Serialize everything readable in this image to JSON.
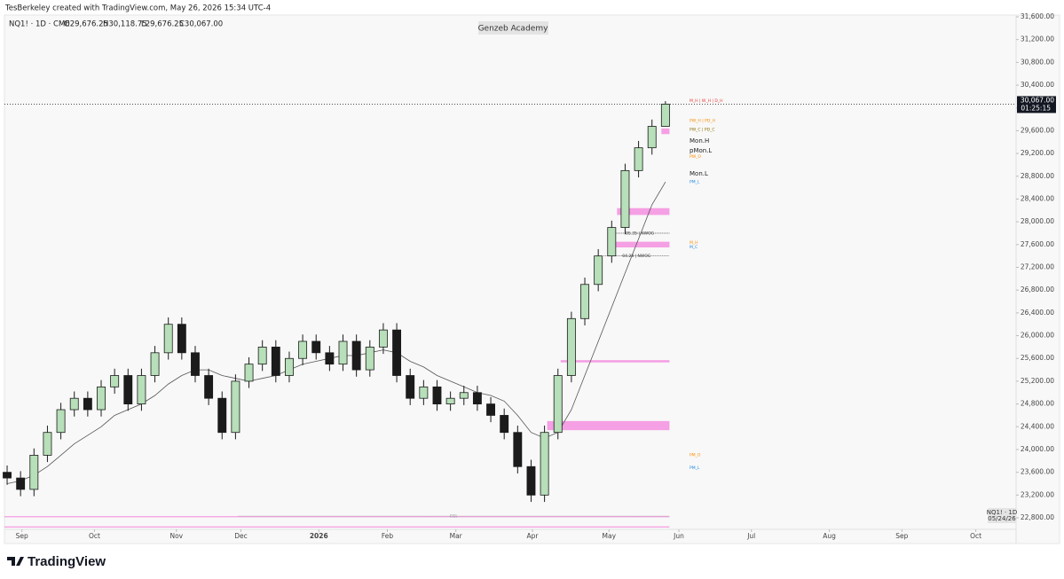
{
  "credit": "TesBerkeley created with TradingView.com, May 26, 2026 15:34 UTC-4",
  "footer": "TradingView",
  "chart_data": {
    "type": "candlestick",
    "title": "NQ1! · 1D · CME",
    "ohlc_labels": [
      "O29,676.25",
      "H30,118.75",
      "L29,676.25",
      "C30,067.00"
    ],
    "watermark": "Genzeb Academy",
    "badge": [
      "NQ1! · 1D",
      "05/24/26"
    ],
    "last_price_label": "30,067.00",
    "countdown": "01:25:15",
    "up_color": "#b7dfb9",
    "down_color": "#1b1b1b",
    "outline_color": "#1b1b1b",
    "open": [
      23600,
      23500,
      23300,
      23900,
      24300,
      24700,
      24900,
      24700,
      25100,
      25300,
      24800,
      25300,
      25700,
      26200,
      25700,
      25300,
      24900,
      24300,
      25200,
      25500,
      25800,
      25300,
      25600,
      25900,
      25700,
      25500,
      25900,
      25400,
      25800,
      26100,
      25300,
      24900,
      25100,
      24800,
      24900,
      25000,
      24800,
      24600,
      24300,
      23700,
      23200,
      24300,
      25300,
      26300,
      26900,
      27400,
      27900,
      28900,
      29300,
      29676.25
    ],
    "high": [
      23720,
      23620,
      24020,
      24420,
      24820,
      25020,
      25020,
      25220,
      25420,
      25420,
      25420,
      25820,
      26320,
      26320,
      25820,
      25420,
      25020,
      25320,
      25620,
      25920,
      25920,
      25720,
      26020,
      26020,
      25820,
      26020,
      26020,
      25920,
      26220,
      26220,
      25420,
      25220,
      25220,
      25020,
      25120,
      25120,
      24920,
      24720,
      24420,
      23820,
      24420,
      25420,
      26420,
      27020,
      27520,
      28020,
      29020,
      29420,
      29796.25,
      30118.75
    ],
    "low": [
      23380,
      23180,
      23180,
      23780,
      24180,
      24580,
      24580,
      24580,
      24980,
      24680,
      24680,
      25180,
      25580,
      25580,
      25180,
      24780,
      24180,
      24180,
      25080,
      25380,
      25180,
      25180,
      25480,
      25580,
      25380,
      25380,
      25280,
      25280,
      25680,
      25180,
      24780,
      24780,
      24680,
      24680,
      24780,
      24680,
      24480,
      24180,
      23580,
      23080,
      23080,
      24180,
      25180,
      26180,
      26780,
      27280,
      27780,
      28780,
      29180,
      29676.25
    ],
    "close": [
      23500,
      23300,
      23900,
      24300,
      24700,
      24900,
      24700,
      25100,
      25300,
      24800,
      25300,
      25700,
      26200,
      25700,
      25300,
      24900,
      24300,
      25200,
      25500,
      25800,
      25300,
      25600,
      25900,
      25700,
      25500,
      25900,
      25400,
      25800,
      26100,
      25300,
      24900,
      25100,
      24800,
      24900,
      25000,
      24800,
      24600,
      24300,
      23700,
      23200,
      24300,
      25300,
      26300,
      26900,
      27400,
      27900,
      28900,
      29300,
      29676.25,
      30067
    ],
    "ma": [
      23400,
      23450,
      23550,
      23700,
      23900,
      24100,
      24250,
      24400,
      24600,
      24700,
      24800,
      24950,
      25150,
      25300,
      25400,
      25400,
      25300,
      25250,
      25200,
      25250,
      25300,
      25400,
      25500,
      25550,
      25600,
      25650,
      25650,
      25700,
      25750,
      25700,
      25550,
      25450,
      25300,
      25200,
      25100,
      25000,
      24950,
      24850,
      24600,
      24300,
      24200,
      24300,
      24700,
      25300,
      25900,
      26500,
      27100,
      27700,
      28300,
      28700
    ],
    "ma_color": "#555555",
    "zone_color": "#f48fe0",
    "zones": [
      {
        "low": 28120,
        "high": 28240,
        "start": 45.4
      },
      {
        "low": 27550,
        "high": 27650,
        "start": 44.7
      },
      {
        "low": 25530,
        "high": 25570,
        "start": 41.2
      },
      {
        "low": 24340,
        "high": 24500,
        "start": 40.2
      },
      {
        "low": 29540,
        "high": 29640,
        "start": 48.7
      },
      {
        "low": 22810,
        "high": 22830,
        "start": -0.2
      },
      {
        "low": 22630,
        "high": 22650,
        "start": -0.2
      }
    ],
    "level_notes": [
      {
        "label": "05.35 | NWOG",
        "level": 27800,
        "color": "#333333",
        "start": 44.9
      },
      {
        "label": "04.28 | NWOG",
        "level": 27400,
        "color": "#333333",
        "start": 44.4
      },
      {
        "label": "EQL",
        "level": 22830,
        "color": "#999999",
        "start": 17.2
      }
    ],
    "annotations": [
      {
        "label": "M_H | W_H | D_H",
        "level": 30130,
        "color": "#e53935"
      },
      {
        "label": "PW_H | PD_H",
        "level": 29780,
        "color": "#fb8c00"
      },
      {
        "label": "PW_C | PD_C",
        "level": 29620,
        "color": "#8a6d00"
      },
      {
        "label": "Mon.H",
        "level": 29420,
        "color": "#222222"
      },
      {
        "label": "pMon.L",
        "level": 29250,
        "color": "#222222"
      },
      {
        "label": "PW_O",
        "level": 29150,
        "color": "#fb8c00"
      },
      {
        "label": "Mon.L",
        "level": 28840,
        "color": "#222222"
      },
      {
        "label": "PM_L",
        "level": 28700,
        "color": "#1e88e5"
      },
      {
        "label": "M_H",
        "level": 27640,
        "color": "#fb8c00"
      },
      {
        "label": "M_C",
        "level": 27560,
        "color": "#1e88e5"
      },
      {
        "label": "PM_O",
        "level": 23910,
        "color": "#fb8c00"
      },
      {
        "label": "PM_L",
        "level": 23680,
        "color": "#1e88e5"
      }
    ],
    "xlim": [
      -0.2,
      75.1
    ],
    "ylim": [
      22598,
      31631
    ],
    "xticks": [
      {
        "value": 1.1,
        "label": "Sep"
      },
      {
        "value": 6.5,
        "label": "Oct"
      },
      {
        "value": 12.6,
        "label": "Nov"
      },
      {
        "value": 17.4,
        "label": "Dec"
      },
      {
        "value": 23.2,
        "label": "2026"
      },
      {
        "value": 28.3,
        "label": "Feb"
      },
      {
        "value": 33.4,
        "label": "Mar"
      },
      {
        "value": 39.1,
        "label": "Apr"
      },
      {
        "value": 44.8,
        "label": "May"
      },
      {
        "value": 50.0,
        "label": "Jun"
      },
      {
        "value": 55.4,
        "label": "Jul"
      },
      {
        "value": 61.2,
        "label": "Aug"
      },
      {
        "value": 66.6,
        "label": "Sep"
      },
      {
        "value": 72.1,
        "label": "Oct"
      }
    ],
    "yticks": [
      {
        "value": 22800,
        "label": "22,800.00"
      },
      {
        "value": 23200,
        "label": "23,200.00"
      },
      {
        "value": 23600,
        "label": "23,600.00"
      },
      {
        "value": 24000,
        "label": "24,000.00"
      },
      {
        "value": 24400,
        "label": "24,400.00"
      },
      {
        "value": 24800,
        "label": "24,800.00"
      },
      {
        "value": 25200,
        "label": "25,200.00"
      },
      {
        "value": 25600,
        "label": "25,600.00"
      },
      {
        "value": 26000,
        "label": "26,000.00"
      },
      {
        "value": 26400,
        "label": "26,400.00"
      },
      {
        "value": 26800,
        "label": "26,800.00"
      },
      {
        "value": 27200,
        "label": "27,200.00"
      },
      {
        "value": 27600,
        "label": "27,600.00"
      },
      {
        "value": 28000,
        "label": "28,000.00"
      },
      {
        "value": 28400,
        "label": "28,400.00"
      },
      {
        "value": 28800,
        "label": "28,800.00"
      },
      {
        "value": 29200,
        "label": "29,200.00"
      },
      {
        "value": 29600,
        "label": "29,600.00"
      },
      {
        "value": 30000,
        "label": "30,000.00"
      },
      {
        "value": 30400,
        "label": "30,400.00"
      },
      {
        "value": 30800,
        "label": "30,800.00"
      },
      {
        "value": 31200,
        "label": "31,200.00"
      },
      {
        "value": 31600,
        "label": "31,600.00"
      }
    ]
  }
}
